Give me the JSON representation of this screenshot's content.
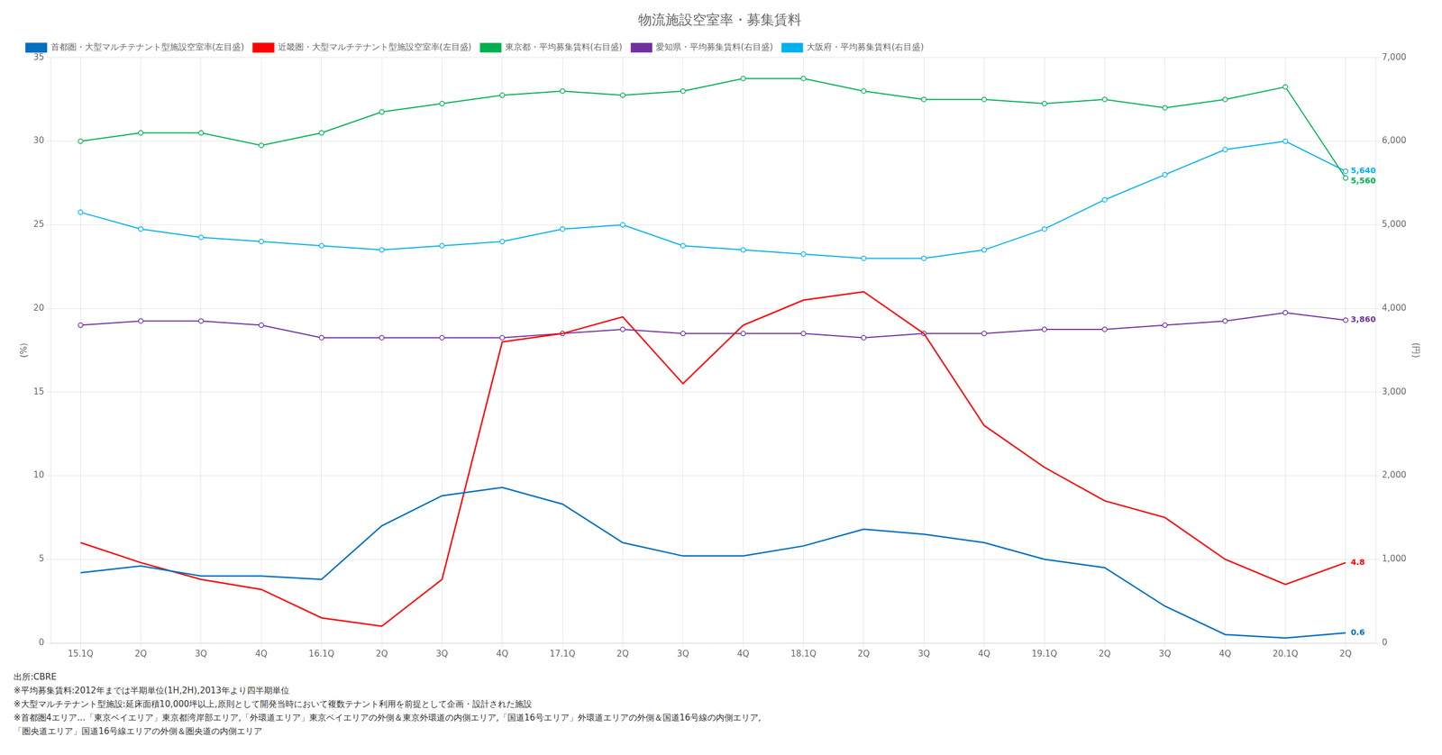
{
  "chart_data": {
    "type": "line",
    "title": "物流施設空室率・募集賃料",
    "ylabel": "(%)",
    "y2label": "(円)",
    "annotations": [
      "出所:CBRE",
      "※平均募集賃料:2012年までは半期単位(1H,2H),2013年より四半期単位",
      "※大型マルチテナント型施設:延床面積10,000坪以上,原則として開発当時において複数テナント利用を前提として企画・設計された施設",
      "※首都圏4エリア…「東京ベイエリア」東京都湾岸部エリア,「外環道エリア」東京ベイエリアの外側＆東京外環道の内側エリア,「国道16号エリア」外環道エリアの外側＆国道16号線の内側エリア,",
      "「圏央道エリア」国道16号線エリアの外側＆圏央道の内側エリア"
    ],
    "categories": [
      "15.1Q",
      "2Q",
      "3Q",
      "4Q",
      "16.1Q",
      "2Q",
      "3Q",
      "4Q",
      "17.1Q",
      "2Q",
      "3Q",
      "4Q",
      "18.1Q",
      "2Q",
      "3Q",
      "4Q",
      "19.1Q",
      "2Q",
      "3Q",
      "4Q",
      "20.1Q",
      "2Q"
    ],
    "ylim": [
      0,
      35
    ],
    "yticks": [
      0,
      5,
      10,
      15,
      20,
      25,
      30,
      35
    ],
    "y2lim": [
      0,
      7000
    ],
    "y2ticks": [
      0,
      {
        "value": 1000,
        "label": "1,000"
      },
      {
        "value": 2000,
        "label": "2,000"
      },
      {
        "value": 3000,
        "label": "3,000"
      },
      {
        "value": 4000,
        "label": "4,000"
      },
      {
        "value": 5000,
        "label": "5,000"
      },
      {
        "value": 6000,
        "label": "6,000"
      },
      {
        "value": 7000,
        "label": "7,000"
      }
    ],
    "grid": true,
    "legend": "upper left",
    "series": [
      {
        "name": "首都圏・大型マルチテナント型施設空室率(左目盛)",
        "color": "#0070C0",
        "values": [
          4.2,
          4.6,
          4.0,
          4.0,
          3.8,
          7.0,
          8.8,
          9.3,
          8.3,
          6.0,
          5.2,
          5.2,
          5.8,
          6.8,
          6.5,
          6.0,
          5.0,
          4.5,
          2.2,
          0.5,
          0.3,
          0.6
        ],
        "value_labels": [
          null,
          null,
          null,
          null,
          null,
          null,
          null,
          null,
          null,
          null,
          null,
          null,
          null,
          null,
          null,
          null,
          null,
          null,
          null,
          null,
          null,
          "0.6"
        ]
      },
      {
        "name": "近畿圏・大型マルチテナント型施設空室率(左目盛)",
        "color": "#FF0000",
        "values": [
          6.0,
          4.8,
          3.8,
          3.2,
          1.5,
          1.0,
          3.8,
          18.0,
          18.5,
          19.5,
          15.5,
          19.0,
          20.5,
          21.0,
          18.5,
          13.0,
          10.5,
          8.5,
          7.5,
          5.0,
          3.5,
          4.8
        ],
        "value_labels": [
          null,
          null,
          null,
          null,
          null,
          null,
          null,
          null,
          null,
          null,
          null,
          null,
          null,
          null,
          null,
          null,
          null,
          null,
          null,
          null,
          null,
          "4.8"
        ]
      },
      {
        "name": "東京都・平均募集賃料(右目盛)",
        "color": "#00B050",
        "axis": "y2",
        "marker": "circle",
        "values": [
          6000,
          6100,
          6100,
          5950,
          6100,
          6350,
          6450,
          6550,
          6600,
          6550,
          6600,
          6750,
          6750,
          6600,
          6500,
          6500,
          6450,
          6500,
          6400,
          6500,
          6650,
          5560
        ],
        "value_labels": [
          null,
          null,
          null,
          null,
          null,
          null,
          null,
          null,
          null,
          null,
          null,
          null,
          null,
          null,
          null,
          null,
          null,
          null,
          null,
          null,
          null,
          "5,560"
        ]
      },
      {
        "name": "愛知県・平均募集賃料(右目盛)",
        "color": "#7030A0",
        "axis": "y2",
        "marker": "circle",
        "values": [
          3800,
          3850,
          3850,
          3800,
          3650,
          3650,
          3650,
          3650,
          3700,
          3750,
          3700,
          3700,
          3700,
          3650,
          3700,
          3700,
          3750,
          3750,
          3800,
          3850,
          3950,
          3860
        ],
        "value_labels": [
          null,
          null,
          null,
          null,
          null,
          null,
          null,
          null,
          null,
          null,
          null,
          null,
          null,
          null,
          null,
          null,
          null,
          null,
          null,
          null,
          null,
          "3,860"
        ]
      },
      {
        "name": "大阪府・平均募集賃料(右目盛)",
        "color": "#00B0F0",
        "axis": "y2",
        "marker": "circle",
        "values": [
          5150,
          4950,
          4850,
          4800,
          4750,
          4700,
          4750,
          4800,
          4950,
          5000,
          4750,
          4700,
          4650,
          4600,
          4600,
          4700,
          4950,
          5300,
          5600,
          5900,
          6000,
          5640
        ],
        "value_labels": [
          null,
          null,
          null,
          null,
          null,
          null,
          null,
          null,
          null,
          null,
          null,
          null,
          null,
          null,
          null,
          null,
          null,
          null,
          null,
          null,
          null,
          "5,640"
        ]
      }
    ]
  }
}
